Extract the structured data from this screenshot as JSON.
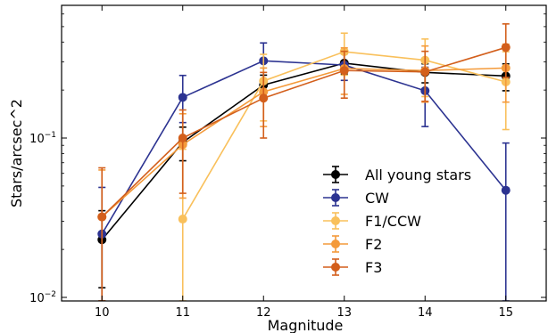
{
  "chart_data": {
    "type": "line",
    "title": "",
    "xlabel": "Magnitude",
    "ylabel": "Stars/arcsec^2",
    "xlim": [
      9.5,
      15.5
    ],
    "ylim": [
      0.0095,
      0.68
    ],
    "yscale": "log",
    "xticks": [
      10,
      11,
      12,
      13,
      14,
      15
    ],
    "xtick_labels": [
      "10",
      "11",
      "12",
      "13",
      "14",
      "15"
    ],
    "yticks": [
      0.01,
      0.1
    ],
    "ytick_labels": [
      "10−2",
      "10−1"
    ],
    "grid": false,
    "legend_position": "lower-right",
    "series": [
      {
        "name": "All young stars",
        "color": "#000000",
        "x": [
          10,
          11,
          12,
          13,
          14,
          15
        ],
        "y": [
          0.023,
          0.094,
          0.215,
          0.295,
          0.258,
          0.245
        ],
        "yerr_low": [
          0.0115,
          0.072,
          0.182,
          0.252,
          0.222,
          0.198
        ],
        "yerr_high": [
          0.035,
          0.117,
          0.248,
          0.338,
          0.292,
          0.292
        ]
      },
      {
        "name": "CW",
        "color": "#2c3391",
        "x": [
          10,
          11,
          12,
          13,
          14,
          15
        ],
        "y": [
          0.025,
          0.18,
          0.305,
          0.287,
          0.198,
          0.047
        ],
        "yerr_low": [
          0.0095,
          0.125,
          0.228,
          0.23,
          0.118,
          0.0095
        ],
        "yerr_high": [
          0.049,
          0.247,
          0.395,
          0.342,
          0.278,
          0.093
        ]
      },
      {
        "name": "F1/CCW",
        "color": "#f9c05b",
        "x": [
          11,
          12,
          13,
          14,
          15
        ],
        "y": [
          0.031,
          0.228,
          0.348,
          0.308,
          0.225
        ],
        "yerr_low": [
          0.0095,
          0.128,
          0.248,
          0.182,
          0.113
        ],
        "yerr_high": [
          0.085,
          0.335,
          0.455,
          0.418,
          0.348
        ]
      },
      {
        "name": "F2",
        "color": "#f49a3a",
        "x": [
          10,
          11,
          12,
          13,
          14,
          15
        ],
        "y": [
          0.032,
          0.091,
          0.195,
          0.273,
          0.265,
          0.275
        ],
        "yerr_low": [
          0.0095,
          0.042,
          0.118,
          0.188,
          0.168,
          0.168
        ],
        "yerr_high": [
          0.063,
          0.142,
          0.275,
          0.368,
          0.378,
          0.388
        ]
      },
      {
        "name": "F3",
        "color": "#d35f1c",
        "x": [
          10,
          11,
          12,
          13,
          14,
          15
        ],
        "y": [
          0.032,
          0.1,
          0.178,
          0.265,
          0.26,
          0.37
        ],
        "yerr_low": [
          0.0095,
          0.045,
          0.1,
          0.178,
          0.17,
          0.24
        ],
        "yerr_high": [
          0.065,
          0.15,
          0.258,
          0.35,
          0.35,
          0.52
        ]
      }
    ]
  }
}
